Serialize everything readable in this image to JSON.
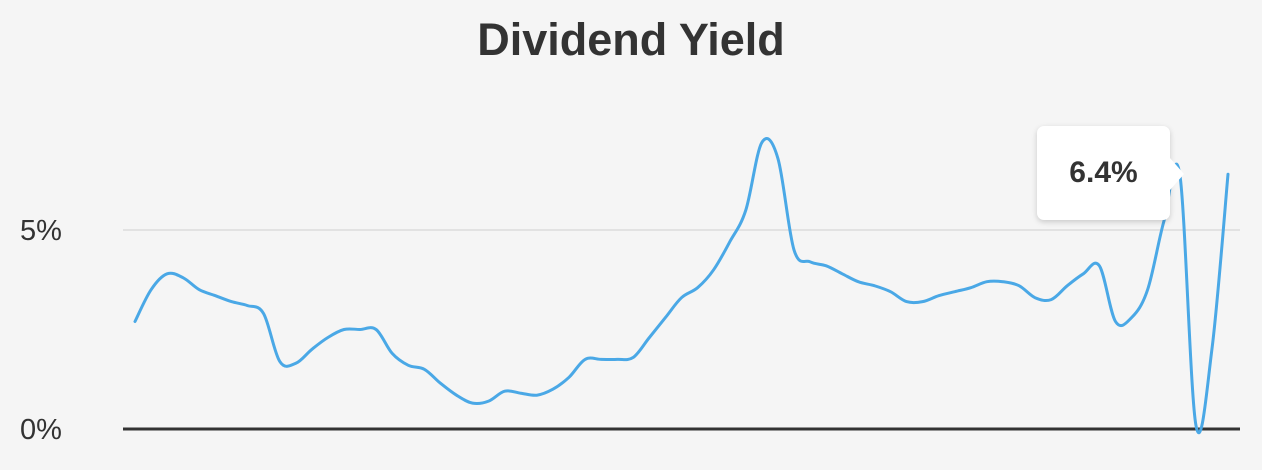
{
  "chart_data": {
    "type": "line",
    "title": "Dividend Yield",
    "xlabel": "",
    "ylabel": "",
    "ylim": [
      0,
      7.5
    ],
    "yticks": [
      {
        "value": 0,
        "label": "0%"
      },
      {
        "value": 5,
        "label": "5%"
      }
    ],
    "grid": true,
    "legend": "none",
    "series": [
      {
        "values": [
          2.7,
          3.5,
          3.9,
          3.8,
          3.5,
          3.35,
          3.2,
          3.1,
          2.9,
          1.7,
          1.65,
          2.0,
          2.3,
          2.5,
          2.5,
          2.5,
          1.9,
          1.6,
          1.5,
          1.15,
          0.85,
          0.65,
          0.7,
          0.95,
          0.9,
          0.85,
          1.0,
          1.3,
          1.75,
          1.75,
          1.75,
          1.8,
          2.3,
          2.8,
          3.3,
          3.55,
          4.0,
          4.7,
          5.5,
          7.2,
          6.8,
          4.5,
          4.2,
          4.1,
          3.9,
          3.7,
          3.6,
          3.45,
          3.2,
          3.2,
          3.35,
          3.45,
          3.55,
          3.7,
          3.7,
          3.6,
          3.3,
          3.25,
          3.6,
          3.9,
          4.1,
          2.7,
          2.8,
          3.5,
          5.2,
          6.4,
          0.1,
          2.0,
          6.4
        ],
        "color": "#4aa8e6"
      }
    ],
    "tooltip": {
      "label": "6.4%"
    }
  },
  "colors": {
    "line": "#4aa8e6",
    "gridline": "#e2e2e2",
    "baseline": "#333333",
    "background": "#f5f5f5"
  }
}
